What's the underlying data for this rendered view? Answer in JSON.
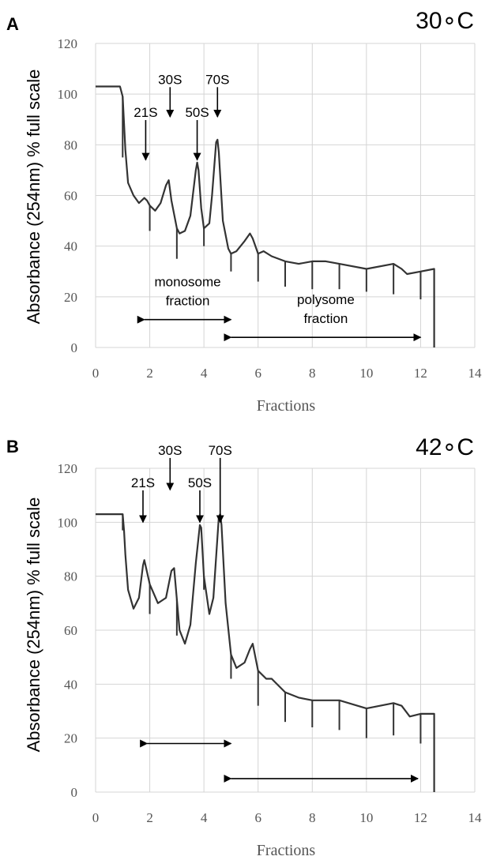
{
  "chart_data": [
    {
      "type": "line",
      "panel": "A",
      "title": "30∘C",
      "xlabel": "Fractions",
      "ylabel": "Absorbance (254nm) % full scale",
      "xlim": [
        0,
        14
      ],
      "ylim": [
        0,
        120
      ],
      "x_ticks": [
        "0",
        "2",
        "4",
        "6",
        "8",
        "10",
        "12",
        "14"
      ],
      "y_ticks": [
        "0",
        "20",
        "40",
        "60",
        "80",
        "100",
        "120"
      ],
      "grid": true,
      "series": [
        {
          "x": [
            0,
            0.9,
            1.0,
            1.1,
            1.2,
            1.4,
            1.6,
            1.8,
            1.9,
            2.0,
            2.2,
            2.4,
            2.6,
            2.7,
            2.8,
            3.0,
            3.1,
            3.3,
            3.5,
            3.7,
            3.75,
            3.8,
            3.9,
            4.0,
            4.2,
            4.3,
            4.45,
            4.5,
            4.55,
            4.7,
            4.9,
            5.0,
            5.2,
            5.5,
            5.7,
            5.8,
            6.0,
            6.2,
            6.5,
            7.0,
            7.5,
            8.0,
            8.5,
            9.0,
            10.0,
            11.0,
            11.3,
            11.5,
            12.0,
            12.5,
            12.5
          ],
          "y": [
            103,
            103,
            99,
            78,
            65,
            60,
            57,
            59,
            58,
            56,
            54,
            57,
            64,
            66,
            58,
            47,
            45,
            46,
            52,
            70,
            73,
            70,
            55,
            47,
            49,
            60,
            81,
            82,
            77,
            50,
            39,
            37,
            38,
            42,
            45,
            43,
            37,
            38,
            36,
            34,
            33,
            34,
            34,
            33,
            31,
            33,
            31,
            29,
            30,
            31,
            0
          ]
        }
      ],
      "fraction_marks": [
        {
          "x": 1.0,
          "y_bottom": 75
        },
        {
          "x": 2.0,
          "y_bottom": 46
        },
        {
          "x": 3.0,
          "y_bottom": 35
        },
        {
          "x": 4.0,
          "y_bottom": 40
        },
        {
          "x": 5.0,
          "y_bottom": 30
        },
        {
          "x": 6.0,
          "y_bottom": 26
        },
        {
          "x": 7.0,
          "y_bottom": 24
        },
        {
          "x": 8.0,
          "y_bottom": 23
        },
        {
          "x": 9.0,
          "y_bottom": 23
        },
        {
          "x": 10.0,
          "y_bottom": 22
        },
        {
          "x": 11.0,
          "y_bottom": 21
        },
        {
          "x": 12.0,
          "y_bottom": 19
        }
      ],
      "peak_labels": [
        {
          "label": "21S",
          "x": 1.85,
          "y_label": 91,
          "y_tip": 74
        },
        {
          "label": "30S",
          "x": 2.75,
          "y_label": 104,
          "y_tip": 91
        },
        {
          "label": "50S",
          "x": 3.75,
          "y_label": 91,
          "y_tip": 74
        },
        {
          "label": "70S",
          "x": 4.5,
          "y_label": 104,
          "y_tip": 91
        }
      ],
      "ranges": [
        {
          "label": [
            "monosome",
            "fraction"
          ],
          "x1": 1.8,
          "x2": 5.0,
          "y": 11
        },
        {
          "label": [
            "polysome",
            "fraction"
          ],
          "x1": 5.0,
          "x2": 12.0,
          "y": 4
        }
      ]
    },
    {
      "type": "line",
      "panel": "B",
      "title": "42∘C",
      "xlabel": "Fractions",
      "ylabel": "Absorbance (254nm) % full scale",
      "xlim": [
        0,
        14
      ],
      "ylim": [
        0,
        120
      ],
      "x_ticks": [
        "0",
        "2",
        "4",
        "6",
        "8",
        "10",
        "12",
        "14"
      ],
      "y_ticks": [
        "0",
        "20",
        "40",
        "60",
        "80",
        "100",
        "120"
      ],
      "grid": true,
      "series": [
        {
          "x": [
            0,
            1.0,
            1.05,
            1.1,
            1.2,
            1.4,
            1.6,
            1.75,
            1.8,
            2.0,
            2.3,
            2.6,
            2.8,
            2.9,
            3.1,
            3.3,
            3.5,
            3.7,
            3.85,
            3.9,
            4.0,
            4.2,
            4.35,
            4.55,
            4.6,
            4.65,
            4.8,
            5.0,
            5.2,
            5.5,
            5.7,
            5.8,
            6.0,
            6.3,
            6.5,
            7.0,
            7.5,
            8.0,
            9.0,
            10.0,
            11.0,
            11.3,
            11.6,
            12.0,
            12.5,
            12.5
          ],
          "y": [
            103,
            103,
            97,
            88,
            75,
            68,
            72,
            84,
            86,
            77,
            70,
            72,
            82,
            83,
            60,
            55,
            62,
            85,
            99,
            98,
            80,
            66,
            72,
            102,
            103,
            99,
            70,
            51,
            46,
            48,
            53,
            55,
            45,
            42,
            42,
            37,
            35,
            34,
            34,
            31,
            33,
            32,
            28,
            29,
            29,
            0
          ]
        }
      ],
      "fraction_marks": [
        {
          "x": 1.0,
          "y_bottom": 97
        },
        {
          "x": 2.0,
          "y_bottom": 66
        },
        {
          "x": 3.0,
          "y_bottom": 58
        },
        {
          "x": 4.0,
          "y_bottom": 75
        },
        {
          "x": 5.0,
          "y_bottom": 42
        },
        {
          "x": 6.0,
          "y_bottom": 32
        },
        {
          "x": 7.0,
          "y_bottom": 26
        },
        {
          "x": 8.0,
          "y_bottom": 24
        },
        {
          "x": 9.0,
          "y_bottom": 23
        },
        {
          "x": 10.0,
          "y_bottom": 20
        },
        {
          "x": 11.0,
          "y_bottom": 21
        },
        {
          "x": 12.0,
          "y_bottom": 18
        }
      ],
      "peak_labels": [
        {
          "label": "21S",
          "x": 1.75,
          "y_label": 113,
          "y_tip": 100
        },
        {
          "label": "30S",
          "x": 2.75,
          "y_label": 125,
          "y_tip": 112
        },
        {
          "label": "50S",
          "x": 3.85,
          "y_label": 113,
          "y_tip": 100
        },
        {
          "label": "70S",
          "x": 4.6,
          "y_label": 125,
          "y_tip": 100
        }
      ],
      "ranges": [
        {
          "label": [
            "",
            ""
          ],
          "x1": 1.9,
          "x2": 5.0,
          "y": 18
        },
        {
          "label": [
            "",
            ""
          ],
          "x1": 5.0,
          "x2": 11.9,
          "y": 5
        }
      ]
    }
  ]
}
